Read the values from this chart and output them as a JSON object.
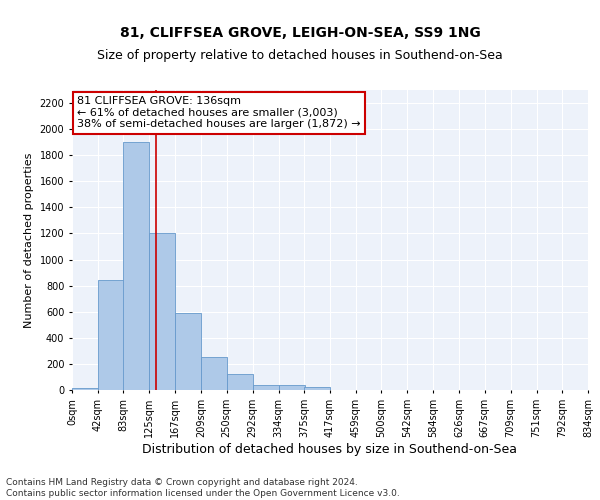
{
  "title_line1": "81, CLIFFSEA GROVE, LEIGH-ON-SEA, SS9 1NG",
  "title_line2": "Size of property relative to detached houses in Southend-on-Sea",
  "xlabel": "Distribution of detached houses by size in Southend-on-Sea",
  "ylabel": "Number of detached properties",
  "bar_color": "#aec9e8",
  "bar_edge_color": "#6699cc",
  "annotation_line1": "81 CLIFFSEA GROVE: 136sqm",
  "annotation_line2": "← 61% of detached houses are smaller (3,003)",
  "annotation_line3": "38% of semi-detached houses are larger (1,872) →",
  "annotation_box_color": "#ffffff",
  "annotation_box_edge_color": "#cc0000",
  "vline_color": "#cc0000",
  "vline_x": 136,
  "bins_left_edges": [
    0,
    42,
    83,
    125,
    167,
    209,
    250,
    292,
    334,
    375,
    417,
    459,
    500,
    542,
    584,
    626,
    667,
    709,
    751,
    792
  ],
  "bin_width": 42,
  "bar_heights": [
    18,
    840,
    1900,
    1200,
    590,
    255,
    120,
    35,
    35,
    20,
    0,
    0,
    0,
    0,
    0,
    0,
    0,
    0,
    0,
    0
  ],
  "tick_labels": [
    "0sqm",
    "42sqm",
    "83sqm",
    "125sqm",
    "167sqm",
    "209sqm",
    "250sqm",
    "292sqm",
    "334sqm",
    "375sqm",
    "417sqm",
    "459sqm",
    "500sqm",
    "542sqm",
    "584sqm",
    "626sqm",
    "667sqm",
    "709sqm",
    "751sqm",
    "792sqm",
    "834sqm"
  ],
  "ylim": [
    0,
    2300
  ],
  "yticks": [
    0,
    200,
    400,
    600,
    800,
    1000,
    1200,
    1400,
    1600,
    1800,
    2000,
    2200
  ],
  "footer_line1": "Contains HM Land Registry data © Crown copyright and database right 2024.",
  "footer_line2": "Contains public sector information licensed under the Open Government Licence v3.0.",
  "bg_color": "#edf2fa",
  "title_fontsize": 10,
  "subtitle_fontsize": 9,
  "tick_fontsize": 7,
  "ylabel_fontsize": 8,
  "xlabel_fontsize": 9,
  "footer_fontsize": 6.5,
  "annotation_fontsize": 8
}
